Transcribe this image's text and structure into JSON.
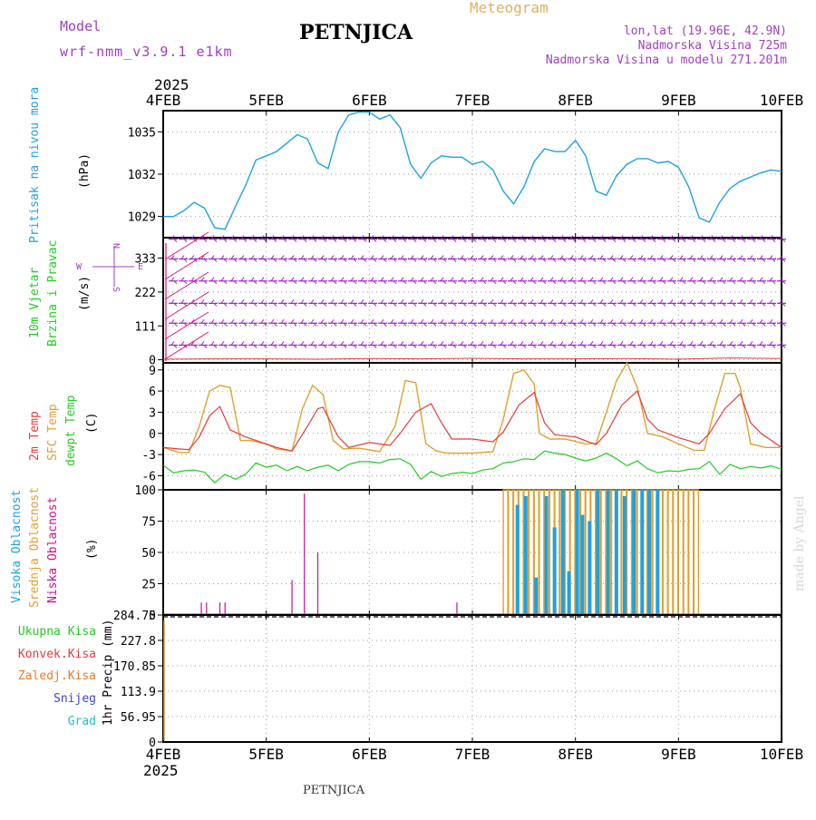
{
  "header": {
    "model_label": "Model",
    "model_name": "wrf-nmm_v3.9.1 e1km",
    "station": "PETNJICA",
    "product": "Meteogram",
    "coords": "lon,lat (19.96E, 42.9N)",
    "elevation": "Nadmorska Visina 725m",
    "model_elevation": "Nadmorska Visina u modelu 271.201m",
    "footer_station": "PETNJICA",
    "credit": "made by Angel"
  },
  "colors": {
    "pressure": "#1fa1e0",
    "wind_barb": "#a020c8",
    "wind_arrow": "#e0106e",
    "temp_2m": "#e83a3a",
    "temp_sfc": "#e0a030",
    "dewpoint": "#22cc22",
    "cloud_high": "#1fa1e0",
    "cloud_mid": "#e0a030",
    "cloud_low": "#c8108c",
    "rain_total": "#22cc22",
    "rain_conv": "#e83a3a",
    "rain_freezing": "#f07820",
    "snow": "#4040e0",
    "hail": "#20c0c0"
  },
  "chart_data": [
    {
      "type": "line",
      "id": "pressure",
      "ylabel_left": "Pritisak na nivou mora",
      "unit": "(hPa)",
      "x_ticks": [
        "4FEB",
        "5FEB",
        "6FEB",
        "7FEB",
        "8FEB",
        "9FEB",
        "10FEB"
      ],
      "x_top_year": "2025",
      "y_ticks": [
        1029,
        1032,
        1035
      ],
      "ylim": [
        1027.5,
        1036.5
      ],
      "series": [
        {
          "x": [
            0,
            0.1,
            0.2,
            0.3,
            0.4,
            0.5,
            0.6,
            0.7,
            0.8,
            0.9,
            1.0,
            1.1,
            1.2,
            1.3,
            1.4,
            1.5,
            1.6,
            1.7,
            1.8,
            1.9,
            2.0,
            2.1,
            2.2,
            2.3,
            2.4,
            2.5,
            2.6,
            2.7,
            2.8,
            2.9,
            3.0,
            3.1,
            3.2,
            3.3,
            3.4,
            3.5,
            3.6,
            3.7,
            3.8,
            3.9,
            4.0,
            4.1,
            4.2,
            4.3,
            4.4,
            4.5,
            4.6,
            4.7,
            4.8,
            4.9,
            5.0,
            5.1,
            5.2,
            5.3,
            5.4,
            5.5,
            5.6,
            5.7,
            5.8,
            5.9,
            6.0
          ],
          "values": [
            1029,
            1029,
            1029.4,
            1030,
            1029.6,
            1028.2,
            1028.1,
            1029.7,
            1031.2,
            1033,
            1033.3,
            1033.6,
            1034.2,
            1034.8,
            1034.5,
            1032.8,
            1032.4,
            1035,
            1036.2,
            1036.4,
            1036.4,
            1035.9,
            1036.2,
            1035.3,
            1032.7,
            1031.7,
            1032.8,
            1033.3,
            1033.2,
            1033.2,
            1032.7,
            1032.9,
            1032.3,
            1030.8,
            1029.9,
            1031.1,
            1032.9,
            1033.8,
            1033.6,
            1033.6,
            1034.4,
            1033.3,
            1030.8,
            1030.5,
            1031.9,
            1032.7,
            1033.1,
            1033.1,
            1032.8,
            1032.9,
            1032.5,
            1031.1,
            1028.9,
            1028.6,
            1030,
            1031,
            1031.5,
            1031.8,
            1032.1,
            1032.3,
            1032.2
          ]
        }
      ]
    },
    {
      "type": "barbs",
      "id": "wind",
      "ylabel_left_1": "10m Vjetar",
      "ylabel_left_2": "Brzina i Pravac",
      "unit": "(m/s)",
      "compass": {
        "n": "N",
        "s": "S",
        "e": "E",
        "w": "W"
      },
      "y_ticks": [
        0,
        111,
        222,
        333
      ],
      "ylim": [
        -10,
        400
      ],
      "barb_levels": [
        48,
        120,
        185,
        258,
        330,
        395
      ],
      "speed_line": {
        "x": [
          0,
          0.5,
          1,
          1.5,
          2,
          2.5,
          3,
          3.5,
          4,
          4.5,
          5,
          5.5,
          6
        ],
        "values": [
          2,
          3,
          3,
          2,
          4,
          3,
          5,
          3,
          3,
          4,
          2,
          6,
          4
        ]
      }
    },
    {
      "type": "line",
      "id": "temperature",
      "ylabel_left_1": "2m Temp",
      "ylabel_left_2": "SFC Temp",
      "ylabel_left_3": "dewpt Temp",
      "unit": "(C)",
      "y_ticks": [
        -6,
        -3,
        0,
        3,
        6,
        9
      ],
      "ylim": [
        -8,
        10
      ],
      "series": [
        {
          "name": "2m Temp",
          "x": [
            0,
            0.15,
            0.25,
            0.35,
            0.45,
            0.55,
            0.65,
            0.8,
            1.0,
            1.1,
            1.25,
            1.4,
            1.5,
            1.55,
            1.7,
            1.8,
            2.0,
            2.2,
            2.3,
            2.45,
            2.6,
            2.7,
            2.8,
            3.0,
            3.2,
            3.3,
            3.45,
            3.6,
            3.7,
            3.8,
            4.0,
            4.2,
            4.3,
            4.45,
            4.6,
            4.7,
            4.8,
            5.0,
            5.2,
            5.3,
            5.45,
            5.6,
            5.7,
            5.8,
            6.0
          ],
          "values": [
            -2,
            -2.2,
            -2.3,
            -0.5,
            2.5,
            3.8,
            0.5,
            -0.5,
            -1.5,
            -2,
            -2.5,
            1,
            3.5,
            3.7,
            -0.5,
            -2,
            -1.3,
            -1.7,
            0,
            3,
            4.2,
            1.5,
            -0.8,
            -0.8,
            -1.2,
            0.2,
            4,
            5.8,
            1.5,
            -0.2,
            -0.5,
            -1.6,
            0,
            4,
            6,
            2,
            0.5,
            -0.6,
            -1.5,
            0,
            3.5,
            5.6,
            1.5,
            0,
            -2
          ]
        },
        {
          "name": "SFC Temp",
          "x": [
            0,
            0.15,
            0.25,
            0.35,
            0.45,
            0.55,
            0.65,
            0.75,
            0.85,
            1.0,
            1.1,
            1.25,
            1.35,
            1.45,
            1.55,
            1.65,
            1.75,
            1.9,
            2.1,
            2.25,
            2.35,
            2.45,
            2.55,
            2.65,
            2.75,
            2.85,
            3.0,
            3.2,
            3.3,
            3.4,
            3.5,
            3.6,
            3.65,
            3.75,
            3.9,
            4.1,
            4.2,
            4.3,
            4.4,
            4.5,
            4.6,
            4.7,
            4.85,
            5.0,
            5.15,
            5.25,
            5.35,
            5.45,
            5.55,
            5.6,
            5.7,
            5.85,
            6.0
          ],
          "values": [
            -2,
            -2.7,
            -2.7,
            1,
            6,
            6.8,
            6.5,
            -1,
            -1,
            -1.5,
            -2.2,
            -2.5,
            3.5,
            6.8,
            5.5,
            -1,
            -2.2,
            -2.1,
            -2.6,
            1,
            7.5,
            7.2,
            -1.5,
            -2.5,
            -2.8,
            -2.8,
            -2.8,
            -2.6,
            2,
            8.5,
            9,
            7,
            0,
            -0.8,
            -0.8,
            -1.5,
            -1.4,
            3,
            7.5,
            10,
            6.5,
            0,
            -0.5,
            -1.5,
            -2.4,
            -2.4,
            3.5,
            8.5,
            8.5,
            6.5,
            -1.5,
            -2,
            -2
          ]
        },
        {
          "name": "dewpt Temp",
          "x": [
            0,
            0.1,
            0.2,
            0.3,
            0.4,
            0.5,
            0.6,
            0.7,
            0.8,
            0.9,
            1.0,
            1.1,
            1.2,
            1.3,
            1.4,
            1.5,
            1.6,
            1.7,
            1.8,
            1.9,
            2.0,
            2.1,
            2.2,
            2.3,
            2.4,
            2.5,
            2.6,
            2.7,
            2.8,
            2.9,
            3.0,
            3.1,
            3.2,
            3.3,
            3.4,
            3.5,
            3.6,
            3.7,
            3.8,
            3.9,
            4.0,
            4.1,
            4.2,
            4.3,
            4.4,
            4.5,
            4.6,
            4.7,
            4.8,
            4.9,
            5.0,
            5.1,
            5.2,
            5.3,
            5.4,
            5.5,
            5.6,
            5.7,
            5.8,
            5.9,
            6.0
          ],
          "values": [
            -4.5,
            -5.6,
            -5.3,
            -5.2,
            -5.5,
            -7,
            -5.8,
            -6.5,
            -5.8,
            -4.2,
            -4.8,
            -4.5,
            -5.3,
            -4.7,
            -5.3,
            -4.8,
            -4.5,
            -5.3,
            -4.4,
            -4,
            -4,
            -4.2,
            -3.7,
            -3.6,
            -4.4,
            -6.5,
            -5.4,
            -6.1,
            -5.7,
            -5.5,
            -5.7,
            -5.2,
            -5.0,
            -4.2,
            -4.0,
            -3.6,
            -3.7,
            -2.5,
            -2.8,
            -3.0,
            -3.5,
            -3.9,
            -3.5,
            -2.8,
            -3.6,
            -4.6,
            -3.9,
            -5.0,
            -5.6,
            -5.3,
            -5.4,
            -5.1,
            -5.0,
            -4.0,
            -5.8,
            -4.4,
            -5.0,
            -4.7,
            -4.9,
            -4.6,
            -5.1
          ]
        }
      ]
    },
    {
      "type": "bar",
      "id": "clouds",
      "ylabel_left_1": "Visoka Oblacnost",
      "ylabel_left_2": "Srednja Oblacnost",
      "ylabel_left_3": "Niska Oblacnost",
      "unit": "(%)",
      "y_ticks": [
        0,
        25,
        50,
        75,
        100
      ],
      "ylim": [
        0,
        100
      ],
      "series": [
        {
          "name": "Niska Oblacnost",
          "x": [
            0.37,
            0.42,
            0.55,
            0.6,
            1.25,
            1.37,
            1.5,
            2.85
          ],
          "values": [
            10,
            10,
            10,
            10,
            28,
            97,
            50,
            10
          ]
        },
        {
          "name": "Srednja Oblacnost",
          "x": [
            3.3,
            3.35,
            3.4,
            3.45,
            3.5,
            3.55,
            3.6,
            3.65,
            3.7,
            3.75,
            3.8,
            3.85,
            3.9,
            3.95,
            4.0,
            4.05,
            4.1,
            4.15,
            4.2,
            4.25,
            4.3,
            4.35,
            4.4,
            4.45,
            4.5,
            4.55,
            4.6,
            4.65,
            4.7,
            4.75,
            4.8,
            4.85,
            4.9,
            4.95,
            5.0,
            5.05,
            5.1,
            5.15
          ],
          "values": [
            100,
            100,
            100,
            100,
            100,
            100,
            100,
            100,
            100,
            100,
            100,
            100,
            100,
            100,
            100,
            100,
            100,
            100,
            100,
            100,
            100,
            100,
            100,
            100,
            100,
            100,
            100,
            100,
            100,
            100,
            100,
            100,
            100,
            100,
            100,
            100,
            100,
            100
          ]
        },
        {
          "name": "Visoka Oblacnost",
          "x": [
            3.42,
            3.5,
            3.6,
            3.7,
            3.78,
            3.86,
            3.92,
            4.0,
            4.05,
            4.12,
            4.2,
            4.3,
            4.38,
            4.46,
            4.55,
            4.63,
            4.7,
            4.78
          ],
          "values": [
            88,
            95,
            30,
            95,
            70,
            100,
            35,
            100,
            80,
            75,
            100,
            100,
            100,
            95,
            100,
            100,
            100,
            100
          ]
        }
      ]
    },
    {
      "type": "bar",
      "id": "precip",
      "legend": [
        "Ukupna Kisa",
        "Konvek.Kisa",
        "Zaledj.Kisa",
        "Snijeg",
        "Grad"
      ],
      "ylabel": "1hr Precip (mm)",
      "y_ticks": [
        "0",
        "56.95",
        "113.9",
        "170.85",
        "227.8",
        "284.75"
      ],
      "ylim": [
        0,
        284.75
      ],
      "x_ticks_bottom": [
        "4FEB",
        "5FEB",
        "6FEB",
        "7FEB",
        "8FEB",
        "9FEB",
        "10FEB"
      ],
      "x_bottom_year": "2025",
      "series": [
        {
          "name": "Ukupna Kisa",
          "x": [
            0
          ],
          "values": [
            0
          ]
        }
      ]
    }
  ]
}
